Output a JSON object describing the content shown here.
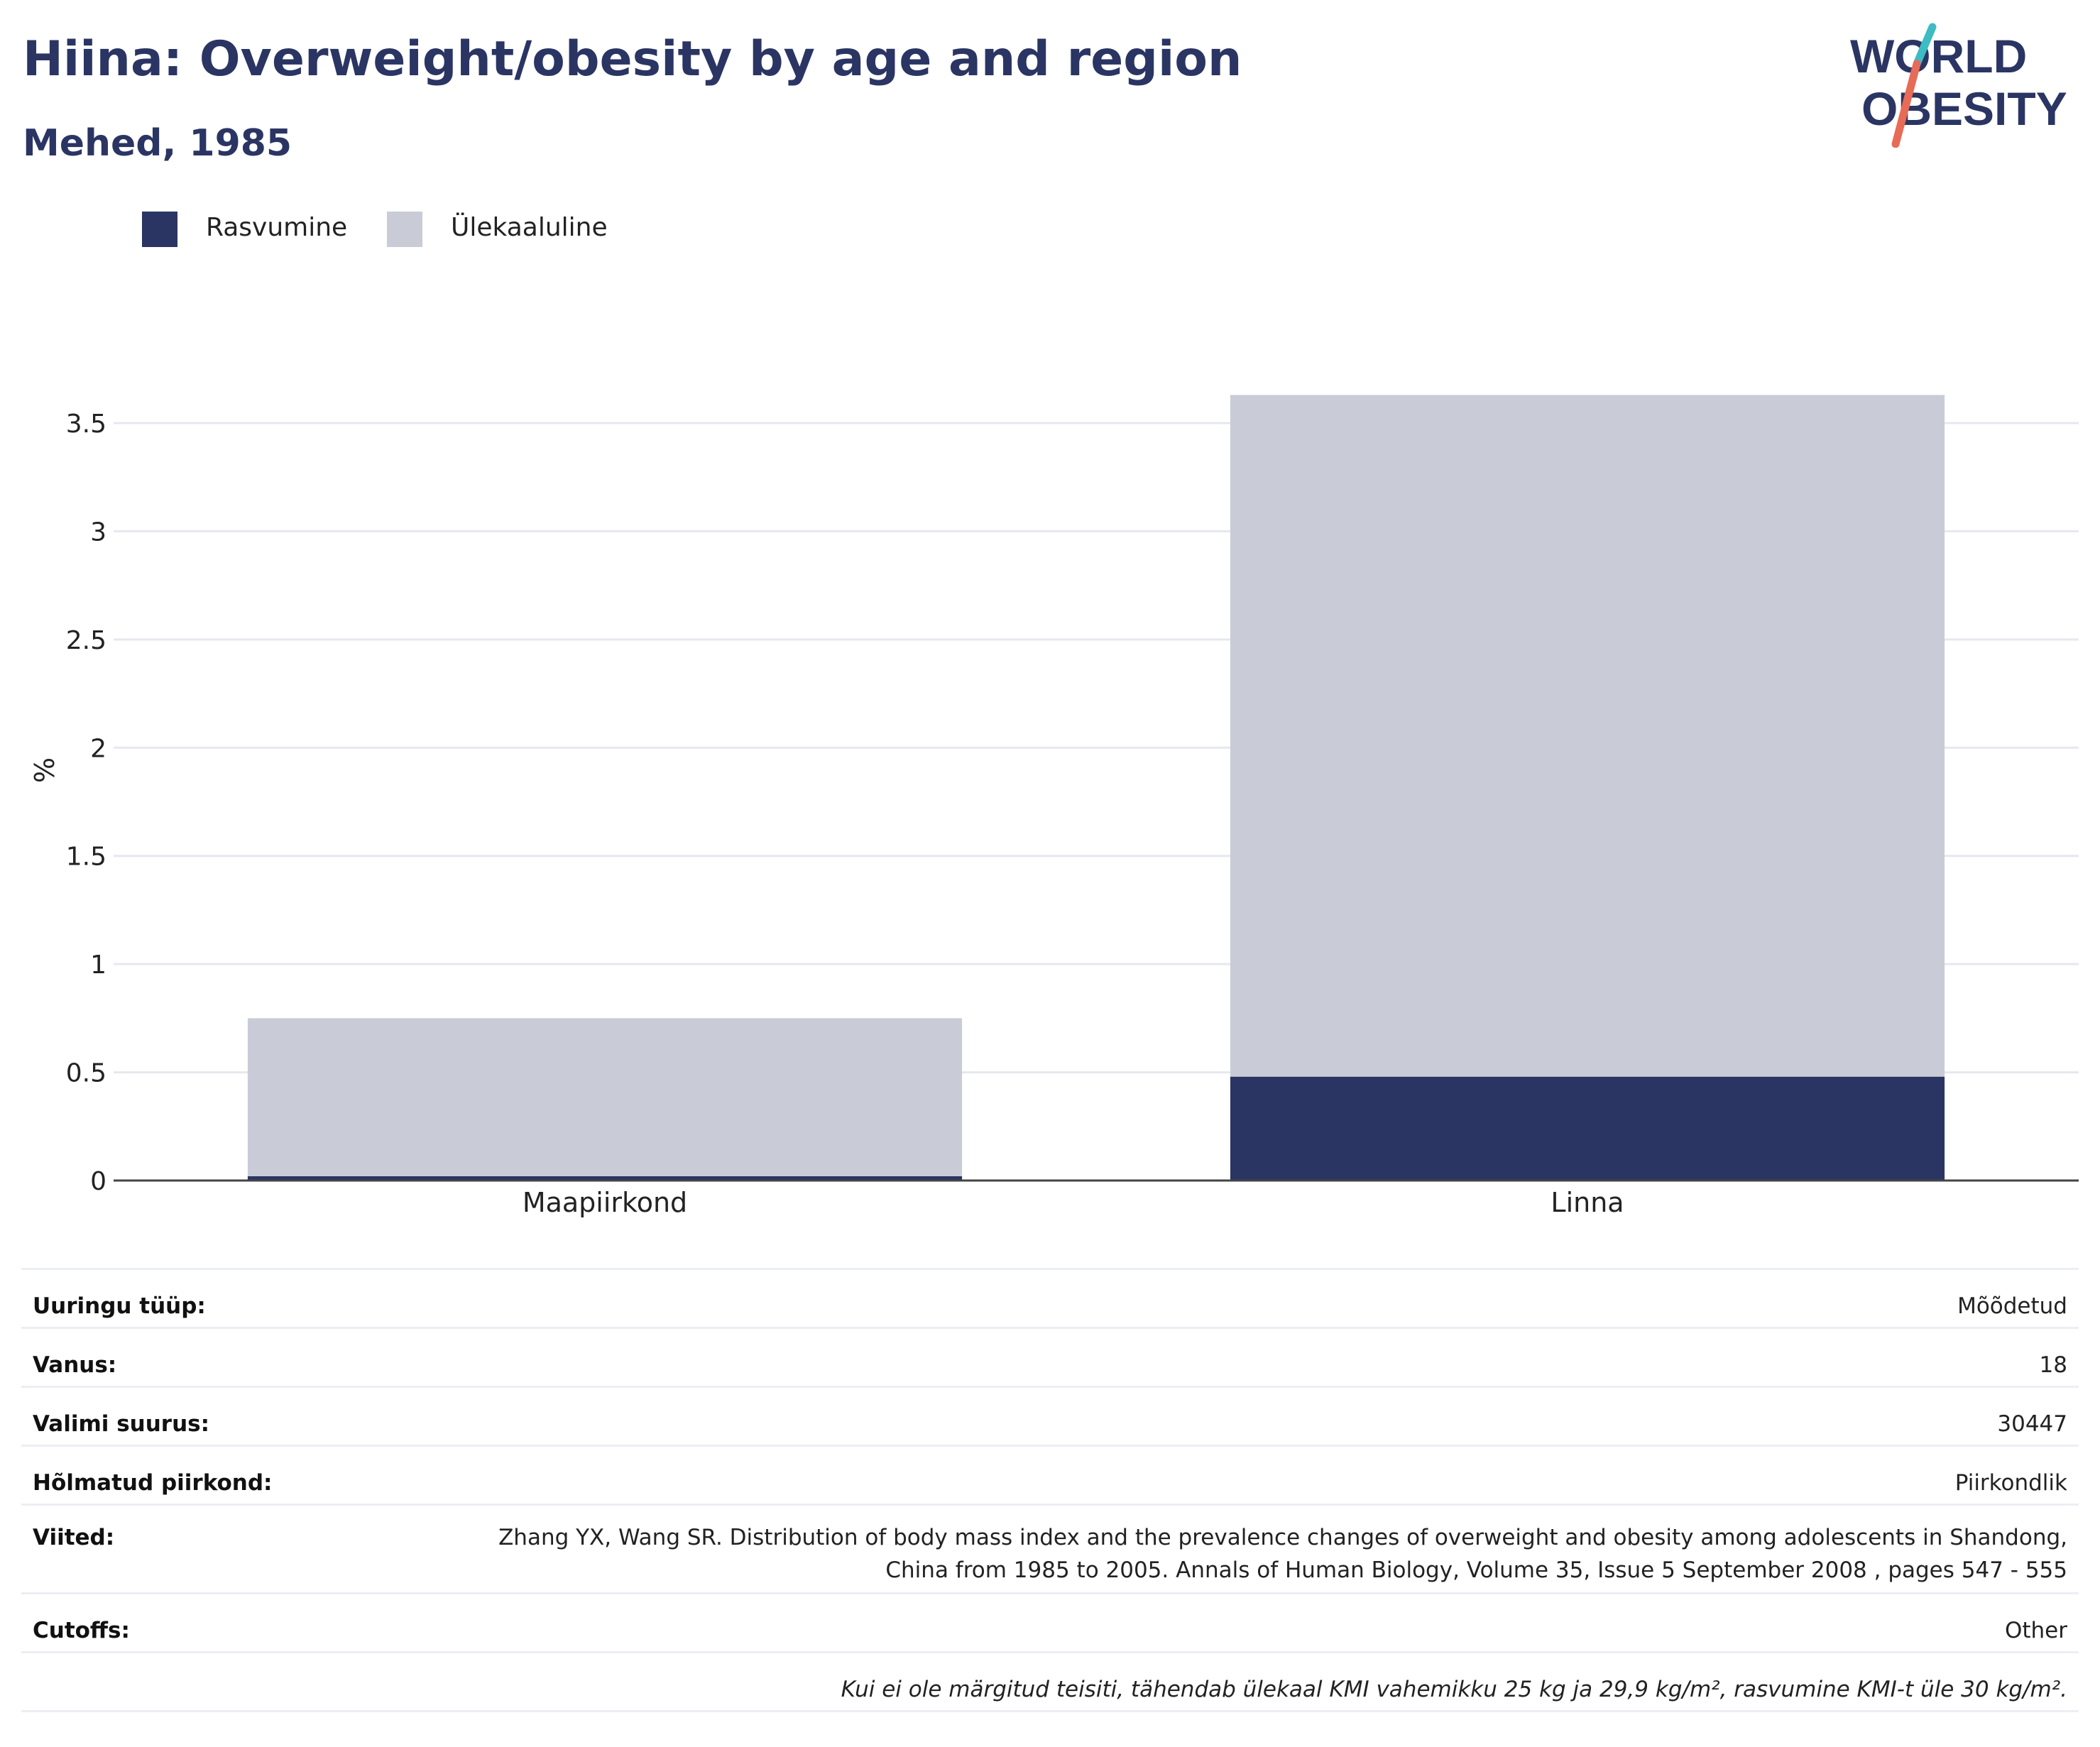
{
  "header": {
    "title": "Hiina: Overweight/obesity by age and region",
    "subtitle": "Mehed, 1985"
  },
  "logo": {
    "line1": "WORLD",
    "line2": "OBESITY",
    "colors": {
      "navy": "#2b3563",
      "teal": "#3dbcc2",
      "coral": "#e76b57"
    }
  },
  "legend": {
    "items": [
      {
        "label": "Rasvumine",
        "color": "#2b3563"
      },
      {
        "label": "Ülekaaluline",
        "color": "#c9ccd7"
      }
    ]
  },
  "chart_data": {
    "type": "bar",
    "stacked": true,
    "categories": [
      "Maapiirkond",
      "Linna"
    ],
    "series": [
      {
        "name": "Rasvumine",
        "color": "#2b3563",
        "values": [
          0.02,
          0.48
        ]
      },
      {
        "name": "Ülekaaluline",
        "color": "#c9ccd7",
        "values": [
          0.73,
          3.15
        ]
      }
    ],
    "ylabel": "%",
    "ylim": [
      0,
      3.7
    ],
    "yticks": [
      0,
      0.5,
      1,
      1.5,
      2,
      2.5,
      3,
      3.5
    ],
    "ytick_labels": [
      "0",
      "0.5",
      "1",
      "1.5",
      "2",
      "2.5",
      "3",
      "3.5"
    ],
    "grid": true,
    "legend_position": "top-left"
  },
  "info": {
    "rows": [
      {
        "key": "Uuringu tüüp:",
        "value": "Mõõdetud"
      },
      {
        "key": "Vanus:",
        "value": "18"
      },
      {
        "key": "Valimi suurus:",
        "value": "30447"
      },
      {
        "key": "Hõlmatud piirkond:",
        "value": "Piirkondlik"
      },
      {
        "key": "Viited:",
        "value": "Zhang YX, Wang SR. Distribution of body mass index and the prevalence changes of overweight and obesity among adolescents in Shandong, China from 1985 to 2005. Annals of Human Biology, Volume 35, Issue 5 September 2008 , pages 547 - 555"
      },
      {
        "key": "Cutoffs:",
        "value": "Other"
      }
    ],
    "note": "Kui ei ole märgitud teisiti, tähendab ülekaal KMI vahemikku 25 kg ja 29,9 kg/m², rasvumine KMI-t üle 30 kg/m²."
  }
}
